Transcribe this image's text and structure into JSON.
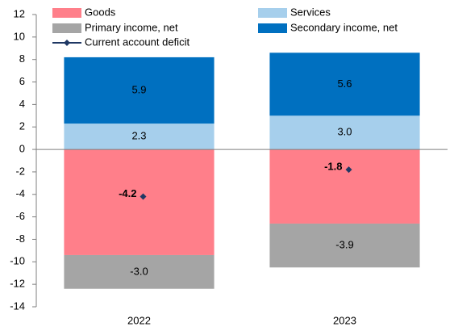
{
  "chart_data": {
    "type": "bar",
    "stacked": true,
    "categories": [
      "2022",
      "2023"
    ],
    "series": [
      {
        "name": "Goods",
        "color": "#ff7f8a",
        "values": [
          -9.4,
          -6.6
        ],
        "value_labels": [
          "-9.4",
          "-6.6"
        ]
      },
      {
        "name": "Services",
        "color": "#a6cfec",
        "values": [
          2.3,
          3.0
        ],
        "value_labels": [
          "2.3",
          "3.0"
        ]
      },
      {
        "name": "Primary income, net",
        "color": "#a5a5a5",
        "values": [
          -3.0,
          -3.9
        ],
        "value_labels": [
          "-3.0",
          "-3.9"
        ]
      },
      {
        "name": "Secondary income, net",
        "color": "#0070c0",
        "values": [
          5.9,
          5.6
        ],
        "value_labels": [
          "5.9",
          "5.6"
        ]
      },
      {
        "name": "Current account deficit",
        "type": "line",
        "color": "#1f3864",
        "values": [
          -4.2,
          -1.8
        ],
        "value_labels": [
          "-4.2",
          "-1.8"
        ]
      }
    ],
    "ylim": [
      -14,
      12
    ],
    "yticks": [
      -14,
      -12,
      -10,
      -8,
      -6,
      -4,
      -2,
      0,
      2,
      4,
      6,
      8,
      10,
      12
    ]
  }
}
